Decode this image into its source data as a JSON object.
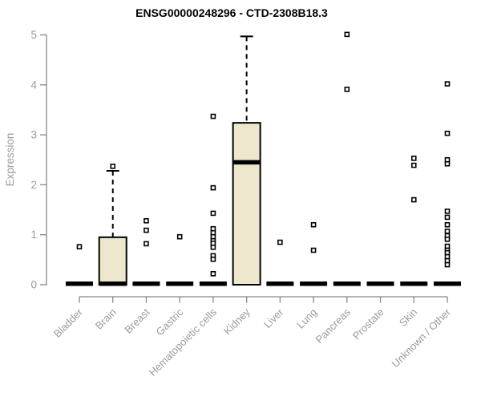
{
  "chart_data": {
    "type": "boxplot",
    "title": "ENSG00000248296 - CTD-2308B18.3",
    "ylabel": "Expression",
    "xlabel": "",
    "ylim": [
      0,
      5
    ],
    "yticks": [
      0,
      1,
      2,
      3,
      4,
      5
    ],
    "grid": false,
    "legend": "none",
    "categories": [
      "Bladder",
      "Brain",
      "Breast",
      "Gastric",
      "Hematopoietic cells",
      "Kidney",
      "Liver",
      "Lung",
      "Pancreas",
      "Prostate",
      "Skin",
      "Unknown / Other"
    ],
    "series": [
      {
        "name": "Bladder",
        "q1": 0,
        "median": 0.02,
        "q3": 0,
        "whisker_low": 0,
        "whisker_high": 0,
        "outliers": [
          0.76
        ]
      },
      {
        "name": "Brain",
        "q1": 0,
        "median": 0.02,
        "q3": 0.95,
        "whisker_low": 0,
        "whisker_high": 2.28,
        "outliers": [
          2.37
        ]
      },
      {
        "name": "Breast",
        "q1": 0,
        "median": 0.02,
        "q3": 0,
        "whisker_low": 0,
        "whisker_high": 0,
        "outliers": [
          1.28,
          1.09,
          0.82
        ]
      },
      {
        "name": "Gastric",
        "q1": 0,
        "median": 0.02,
        "q3": 0,
        "whisker_low": 0,
        "whisker_high": 0,
        "outliers": [
          0.96
        ]
      },
      {
        "name": "Hematopoietic cells",
        "q1": 0,
        "median": 0.02,
        "q3": 0,
        "whisker_low": 0,
        "whisker_high": 0,
        "outliers": [
          3.37,
          1.94,
          1.43,
          1.12,
          1.04,
          0.96,
          0.88,
          0.83,
          0.75,
          0.58,
          0.51,
          0.22
        ]
      },
      {
        "name": "Kidney",
        "q1": 0,
        "median": 2.45,
        "q3": 3.24,
        "whisker_low": 0,
        "whisker_high": 4.97,
        "outliers": []
      },
      {
        "name": "Liver",
        "q1": 0,
        "median": 0.02,
        "q3": 0,
        "whisker_low": 0,
        "whisker_high": 0,
        "outliers": [
          0.85
        ]
      },
      {
        "name": "Lung",
        "q1": 0,
        "median": 0.02,
        "q3": 0,
        "whisker_low": 0,
        "whisker_high": 0,
        "outliers": [
          1.2,
          0.69
        ]
      },
      {
        "name": "Pancreas",
        "q1": 0,
        "median": 0.02,
        "q3": 0,
        "whisker_low": 0,
        "whisker_high": 0,
        "outliers": [
          5.01,
          3.91
        ]
      },
      {
        "name": "Prostate",
        "q1": 0,
        "median": 0.02,
        "q3": 0,
        "whisker_low": 0,
        "whisker_high": 0,
        "outliers": []
      },
      {
        "name": "Skin",
        "q1": 0,
        "median": 0.02,
        "q3": 0,
        "whisker_low": 0,
        "whisker_high": 0,
        "outliers": [
          2.53,
          2.39,
          1.7
        ]
      },
      {
        "name": "Unknown / Other",
        "q1": 0,
        "median": 0.02,
        "q3": 0,
        "whisker_low": 0,
        "whisker_high": 0,
        "outliers": [
          4.02,
          3.03,
          2.5,
          2.42,
          1.47,
          1.35,
          1.2,
          1.07,
          0.98,
          0.91,
          0.77,
          0.69,
          0.64,
          0.56,
          0.48,
          0.4
        ]
      }
    ],
    "style": {
      "box_fill": "#EDE7CD",
      "box_stroke": "#000000",
      "median_color": "#000000",
      "point_fill": "#FFFFFF",
      "point_stroke": "#000000",
      "axis_color": "#878787",
      "label_color": "#9B9B9B",
      "title_color": "#000000",
      "background": "#FFFFFF"
    }
  }
}
